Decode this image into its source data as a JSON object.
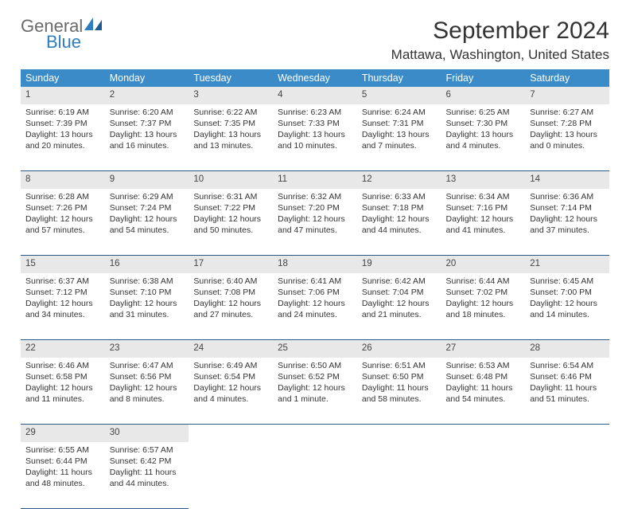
{
  "logo": {
    "word1": "General",
    "word2": "Blue"
  },
  "title": "September 2024",
  "location": "Mattawa, Washington, United States",
  "colors": {
    "header_bg": "#3b8bc9",
    "header_fg": "#ffffff",
    "daynum_bg": "#e8e8e8",
    "rule": "#2a5b88",
    "text": "#333333",
    "logo_gray": "#6a6a6a",
    "logo_blue": "#2e7cc2"
  },
  "weekdays": [
    "Sunday",
    "Monday",
    "Tuesday",
    "Wednesday",
    "Thursday",
    "Friday",
    "Saturday"
  ],
  "weeks": [
    [
      {
        "n": "1",
        "sunrise": "6:19 AM",
        "sunset": "7:39 PM",
        "dl": "13 hours and 20 minutes."
      },
      {
        "n": "2",
        "sunrise": "6:20 AM",
        "sunset": "7:37 PM",
        "dl": "13 hours and 16 minutes."
      },
      {
        "n": "3",
        "sunrise": "6:22 AM",
        "sunset": "7:35 PM",
        "dl": "13 hours and 13 minutes."
      },
      {
        "n": "4",
        "sunrise": "6:23 AM",
        "sunset": "7:33 PM",
        "dl": "13 hours and 10 minutes."
      },
      {
        "n": "5",
        "sunrise": "6:24 AM",
        "sunset": "7:31 PM",
        "dl": "13 hours and 7 minutes."
      },
      {
        "n": "6",
        "sunrise": "6:25 AM",
        "sunset": "7:30 PM",
        "dl": "13 hours and 4 minutes."
      },
      {
        "n": "7",
        "sunrise": "6:27 AM",
        "sunset": "7:28 PM",
        "dl": "13 hours and 0 minutes."
      }
    ],
    [
      {
        "n": "8",
        "sunrise": "6:28 AM",
        "sunset": "7:26 PM",
        "dl": "12 hours and 57 minutes."
      },
      {
        "n": "9",
        "sunrise": "6:29 AM",
        "sunset": "7:24 PM",
        "dl": "12 hours and 54 minutes."
      },
      {
        "n": "10",
        "sunrise": "6:31 AM",
        "sunset": "7:22 PM",
        "dl": "12 hours and 50 minutes."
      },
      {
        "n": "11",
        "sunrise": "6:32 AM",
        "sunset": "7:20 PM",
        "dl": "12 hours and 47 minutes."
      },
      {
        "n": "12",
        "sunrise": "6:33 AM",
        "sunset": "7:18 PM",
        "dl": "12 hours and 44 minutes."
      },
      {
        "n": "13",
        "sunrise": "6:34 AM",
        "sunset": "7:16 PM",
        "dl": "12 hours and 41 minutes."
      },
      {
        "n": "14",
        "sunrise": "6:36 AM",
        "sunset": "7:14 PM",
        "dl": "12 hours and 37 minutes."
      }
    ],
    [
      {
        "n": "15",
        "sunrise": "6:37 AM",
        "sunset": "7:12 PM",
        "dl": "12 hours and 34 minutes."
      },
      {
        "n": "16",
        "sunrise": "6:38 AM",
        "sunset": "7:10 PM",
        "dl": "12 hours and 31 minutes."
      },
      {
        "n": "17",
        "sunrise": "6:40 AM",
        "sunset": "7:08 PM",
        "dl": "12 hours and 27 minutes."
      },
      {
        "n": "18",
        "sunrise": "6:41 AM",
        "sunset": "7:06 PM",
        "dl": "12 hours and 24 minutes."
      },
      {
        "n": "19",
        "sunrise": "6:42 AM",
        "sunset": "7:04 PM",
        "dl": "12 hours and 21 minutes."
      },
      {
        "n": "20",
        "sunrise": "6:44 AM",
        "sunset": "7:02 PM",
        "dl": "12 hours and 18 minutes."
      },
      {
        "n": "21",
        "sunrise": "6:45 AM",
        "sunset": "7:00 PM",
        "dl": "12 hours and 14 minutes."
      }
    ],
    [
      {
        "n": "22",
        "sunrise": "6:46 AM",
        "sunset": "6:58 PM",
        "dl": "12 hours and 11 minutes."
      },
      {
        "n": "23",
        "sunrise": "6:47 AM",
        "sunset": "6:56 PM",
        "dl": "12 hours and 8 minutes."
      },
      {
        "n": "24",
        "sunrise": "6:49 AM",
        "sunset": "6:54 PM",
        "dl": "12 hours and 4 minutes."
      },
      {
        "n": "25",
        "sunrise": "6:50 AM",
        "sunset": "6:52 PM",
        "dl": "12 hours and 1 minute."
      },
      {
        "n": "26",
        "sunrise": "6:51 AM",
        "sunset": "6:50 PM",
        "dl": "11 hours and 58 minutes."
      },
      {
        "n": "27",
        "sunrise": "6:53 AM",
        "sunset": "6:48 PM",
        "dl": "11 hours and 54 minutes."
      },
      {
        "n": "28",
        "sunrise": "6:54 AM",
        "sunset": "6:46 PM",
        "dl": "11 hours and 51 minutes."
      }
    ],
    [
      {
        "n": "29",
        "sunrise": "6:55 AM",
        "sunset": "6:44 PM",
        "dl": "11 hours and 48 minutes."
      },
      {
        "n": "30",
        "sunrise": "6:57 AM",
        "sunset": "6:42 PM",
        "dl": "11 hours and 44 minutes."
      },
      null,
      null,
      null,
      null,
      null
    ]
  ],
  "labels": {
    "sunrise": "Sunrise:",
    "sunset": "Sunset:",
    "daylight": "Daylight:"
  }
}
